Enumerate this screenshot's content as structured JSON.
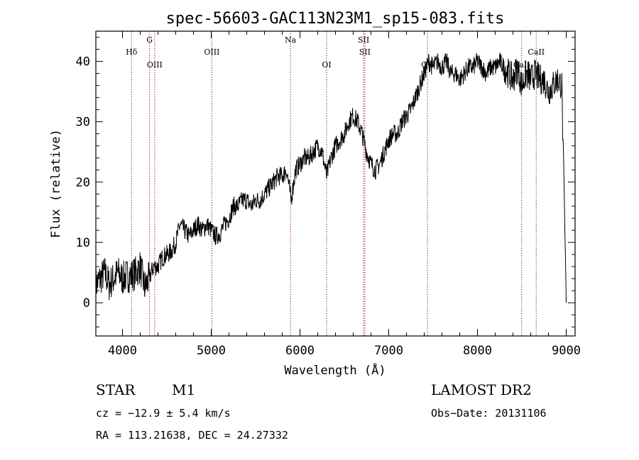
{
  "chart_data": {
    "type": "line",
    "title": "spec-56603-GAC113N23M1_sp15-083.fits",
    "xlabel": "Wavelength (Å)",
    "ylabel": "Flux (relative)",
    "xlim": [
      3700,
      9100
    ],
    "ylim": [
      -5.5,
      45
    ],
    "xticks": [
      4000,
      5000,
      6000,
      7000,
      8000,
      9000
    ],
    "yticks": [
      0,
      10,
      20,
      30,
      40
    ],
    "grid": false,
    "series": [
      {
        "color": "#000000",
        "x": [
          3700,
          3750,
          3800,
          3850,
          3900,
          3950,
          4000,
          4050,
          4100,
          4150,
          4200,
          4250,
          4300,
          4350,
          4400,
          4450,
          4500,
          4550,
          4600,
          4650,
          4700,
          4750,
          4800,
          4850,
          4900,
          4950,
          5000,
          5050,
          5100,
          5150,
          5200,
          5250,
          5300,
          5350,
          5400,
          5450,
          5500,
          5550,
          5600,
          5650,
          5700,
          5750,
          5800,
          5850,
          5900,
          5950,
          6000,
          6050,
          6100,
          6150,
          6200,
          6250,
          6300,
          6350,
          6400,
          6450,
          6500,
          6550,
          6600,
          6650,
          6700,
          6750,
          6800,
          6850,
          6900,
          6950,
          7000,
          7050,
          7100,
          7150,
          7200,
          7250,
          7300,
          7350,
          7400,
          7450,
          7500,
          7550,
          7600,
          7650,
          7700,
          7750,
          7800,
          7850,
          7900,
          7950,
          8000,
          8050,
          8100,
          8150,
          8200,
          8250,
          8300,
          8350,
          8400,
          8450,
          8500,
          8550,
          8600,
          8650,
          8700,
          8750,
          8800,
          8850,
          8900,
          8950,
          9000
        ],
        "y": [
          3,
          4,
          5,
          3,
          4,
          5,
          4,
          4.5,
          4.5,
          5,
          6,
          2.5,
          4,
          6,
          6,
          7.5,
          8,
          8.5,
          10,
          13,
          12,
          11,
          12,
          13,
          12,
          13,
          12,
          11,
          11.5,
          13,
          14,
          16,
          16,
          17,
          17,
          16,
          17,
          17,
          18,
          19,
          20,
          21,
          21,
          22,
          17,
          22,
          23,
          24,
          24,
          25,
          26,
          25,
          21,
          24,
          26,
          27,
          28,
          30,
          31,
          30,
          28,
          25,
          23,
          22,
          23,
          25,
          27,
          28,
          28,
          30,
          31,
          32,
          34,
          36,
          38,
          40,
          39,
          40,
          39,
          40,
          38,
          38,
          37,
          38,
          39,
          39,
          40,
          39,
          38,
          39,
          39,
          40,
          39,
          38,
          37,
          39,
          36,
          38,
          37,
          38,
          37,
          37,
          35,
          36,
          37,
          36,
          0
        ],
        "noise": 1.6
      }
    ],
    "lines": [
      {
        "label": "Hδ",
        "x": 4102,
        "tier": 1
      },
      {
        "label": "G",
        "x": 4305,
        "tier": 0
      },
      {
        "label": "OIII",
        "x": 4363,
        "tier": 2
      },
      {
        "label": "OIII",
        "x": 5007,
        "tier": 1
      },
      {
        "label": "Na",
        "x": 5893,
        "tier": 0
      },
      {
        "label": "OI",
        "x": 6300,
        "tier": 2
      },
      {
        "label": "SII",
        "x": 6717,
        "tier": 0
      },
      {
        "label": "SII",
        "x": 6731,
        "tier": 1
      },
      {
        "label": "OII",
        "x": 7437,
        "tier": 2
      },
      {
        "label": "CaII",
        "x": 8498,
        "tier": 2
      },
      {
        "label": "CaII",
        "x": 8662,
        "tier": 1
      }
    ],
    "line_color": "#8b0000"
  },
  "info": {
    "object_class": "STAR",
    "subclass": "M1",
    "survey": "LAMOST DR2",
    "cz": "cz = −12.9 ± 5.4 km/s",
    "obs_date": "Obs−Date: 20131106",
    "coords": "RA = 113.21638, DEC =  24.27332"
  }
}
